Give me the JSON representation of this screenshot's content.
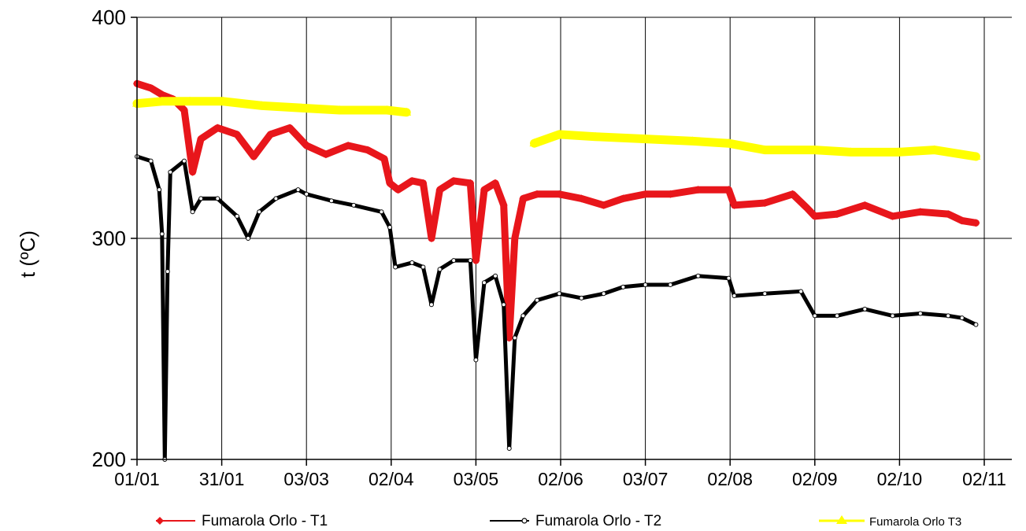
{
  "chart_data": {
    "type": "line",
    "title": "",
    "xlabel": "",
    "ylabel": "t (ºC)",
    "ylim": [
      200,
      400
    ],
    "yticks": [
      200,
      300,
      400
    ],
    "x_tick_labels": [
      "01/01",
      "31/01",
      "03/03",
      "02/04",
      "03/05",
      "02/06",
      "03/07",
      "02/08",
      "02/09",
      "02/10",
      "02/11"
    ],
    "xlim": [
      "01/01",
      "02/11"
    ],
    "grid": true,
    "legend_position": "bottom",
    "series": [
      {
        "name": "Fumarola Orlo - T1",
        "color": "#e8161b",
        "marker": "diamond",
        "points": [
          [
            "01/01",
            370
          ],
          [
            "06/01",
            368
          ],
          [
            "10/01",
            365
          ],
          [
            "14/01",
            363
          ],
          [
            "18/01",
            358
          ],
          [
            "21/01",
            330
          ],
          [
            "24/01",
            345
          ],
          [
            "30/01",
            350
          ],
          [
            "06/02",
            347
          ],
          [
            "12/02",
            337
          ],
          [
            "18/02",
            347
          ],
          [
            "25/02",
            350
          ],
          [
            "03/03",
            342
          ],
          [
            "10/03",
            338
          ],
          [
            "18/03",
            342
          ],
          [
            "25/03",
            340
          ],
          [
            "31/03",
            336
          ],
          [
            "02/04",
            325
          ],
          [
            "05/04",
            322
          ],
          [
            "10/04",
            326
          ],
          [
            "14/04",
            325
          ],
          [
            "17/04",
            300
          ],
          [
            "20/04",
            322
          ],
          [
            "25/04",
            326
          ],
          [
            "01/05",
            325
          ],
          [
            "03/05",
            290
          ],
          [
            "06/05",
            322
          ],
          [
            "10/05",
            325
          ],
          [
            "13/05",
            315
          ],
          [
            "15/05",
            255
          ],
          [
            "17/05",
            300
          ],
          [
            "20/05",
            318
          ],
          [
            "25/05",
            320
          ],
          [
            "02/06",
            320
          ],
          [
            "10/06",
            318
          ],
          [
            "18/06",
            315
          ],
          [
            "25/06",
            318
          ],
          [
            "03/07",
            320
          ],
          [
            "12/07",
            320
          ],
          [
            "22/07",
            322
          ],
          [
            "02/08",
            322
          ],
          [
            "04/08",
            315
          ],
          [
            "15/08",
            316
          ],
          [
            "25/08",
            320
          ],
          [
            "30/08",
            314
          ],
          [
            "02/09",
            310
          ],
          [
            "10/09",
            311
          ],
          [
            "20/09",
            315
          ],
          [
            "30/09",
            310
          ],
          [
            "10/10",
            312
          ],
          [
            "20/10",
            311
          ],
          [
            "25/10",
            308
          ],
          [
            "30/10",
            307
          ]
        ]
      },
      {
        "name": "Fumarola Orlo - T2",
        "color": "#000000",
        "marker": "circle",
        "points": [
          [
            "01/01",
            337
          ],
          [
            "06/01",
            335
          ],
          [
            "09/01",
            322
          ],
          [
            "10/01",
            302
          ],
          [
            "11/01",
            200
          ],
          [
            "12/01",
            285
          ],
          [
            "13/01",
            330
          ],
          [
            "18/01",
            335
          ],
          [
            "21/01",
            312
          ],
          [
            "24/01",
            318
          ],
          [
            "30/01",
            318
          ],
          [
            "06/02",
            310
          ],
          [
            "10/02",
            300
          ],
          [
            "14/02",
            312
          ],
          [
            "20/02",
            318
          ],
          [
            "28/02",
            322
          ],
          [
            "03/03",
            320
          ],
          [
            "12/03",
            317
          ],
          [
            "20/03",
            315
          ],
          [
            "30/03",
            312
          ],
          [
            "02/04",
            305
          ],
          [
            "04/04",
            287
          ],
          [
            "10/04",
            289
          ],
          [
            "14/04",
            287
          ],
          [
            "17/04",
            270
          ],
          [
            "20/04",
            286
          ],
          [
            "25/04",
            290
          ],
          [
            "01/05",
            290
          ],
          [
            "03/05",
            245
          ],
          [
            "06/05",
            280
          ],
          [
            "10/05",
            283
          ],
          [
            "13/05",
            270
          ],
          [
            "15/05",
            205
          ],
          [
            "17/05",
            255
          ],
          [
            "20/05",
            265
          ],
          [
            "25/05",
            272
          ],
          [
            "02/06",
            275
          ],
          [
            "10/06",
            273
          ],
          [
            "18/06",
            275
          ],
          [
            "25/06",
            278
          ],
          [
            "03/07",
            279
          ],
          [
            "12/07",
            279
          ],
          [
            "22/07",
            283
          ],
          [
            "02/08",
            282
          ],
          [
            "04/08",
            274
          ],
          [
            "15/08",
            275
          ],
          [
            "28/08",
            276
          ],
          [
            "02/09",
            265
          ],
          [
            "10/09",
            265
          ],
          [
            "20/09",
            268
          ],
          [
            "30/09",
            265
          ],
          [
            "10/10",
            266
          ],
          [
            "20/10",
            265
          ],
          [
            "25/10",
            264
          ],
          [
            "30/10",
            261
          ]
        ]
      },
      {
        "name": "Fumarola Orlo T3",
        "color": "#ffff00",
        "marker": "triangle",
        "points": [
          [
            "01/01",
            361
          ],
          [
            "10/01",
            362
          ],
          [
            "20/01",
            362
          ],
          [
            "01/02",
            362
          ],
          [
            "15/02",
            360
          ],
          [
            "01/03",
            359
          ],
          [
            "15/03",
            358
          ],
          [
            "01/04",
            358
          ],
          [
            "08/04",
            357
          ],
          null,
          [
            "24/05",
            343
          ],
          [
            "02/06",
            347
          ],
          [
            "15/06",
            346
          ],
          [
            "03/07",
            345
          ],
          [
            "20/07",
            344
          ],
          [
            "02/08",
            343
          ],
          [
            "15/08",
            340
          ],
          [
            "02/09",
            340
          ],
          [
            "15/09",
            339
          ],
          [
            "02/10",
            339
          ],
          [
            "15/10",
            340
          ],
          [
            "30/10",
            337
          ]
        ]
      }
    ]
  }
}
